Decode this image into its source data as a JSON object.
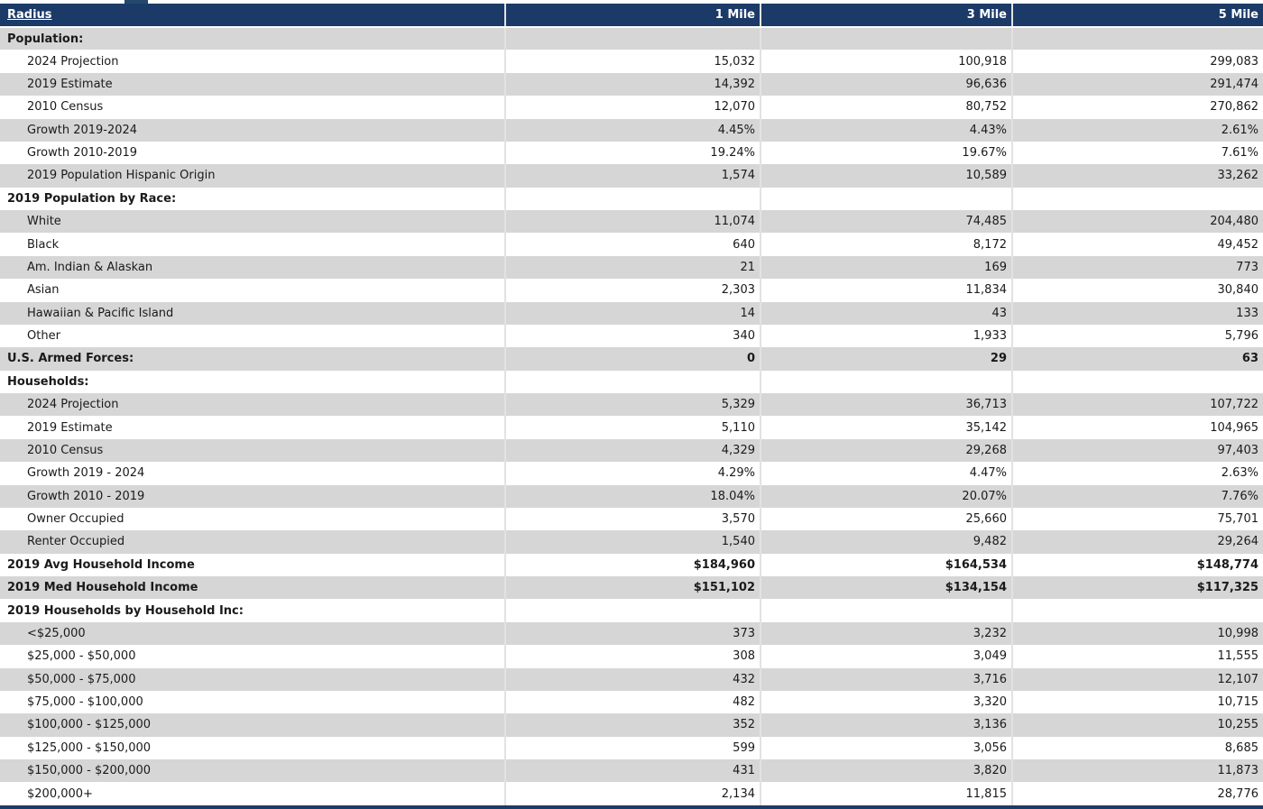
{
  "colors": {
    "header_bg": "#1c3a67",
    "header_text": "#ffffff",
    "row_gray": "#d6d6d6",
    "row_white": "#ffffff",
    "text": "#1a1a1a",
    "sep": "#e2e2e2",
    "tab": "#24476e"
  },
  "table": {
    "columns": [
      {
        "label": "Radius",
        "align": "left"
      },
      {
        "label": "1 Mile",
        "align": "right"
      },
      {
        "label": "3 Mile",
        "align": "right"
      },
      {
        "label": "5 Mile",
        "align": "right"
      }
    ],
    "rows": [
      {
        "label": "Population:",
        "type": "section",
        "values": [
          "",
          "",
          ""
        ]
      },
      {
        "label": "2024 Projection",
        "type": "data",
        "values": [
          "15,032",
          "100,918",
          "299,083"
        ]
      },
      {
        "label": "2019 Estimate",
        "type": "data",
        "values": [
          "14,392",
          "96,636",
          "291,474"
        ]
      },
      {
        "label": "2010 Census",
        "type": "data",
        "values": [
          "12,070",
          "80,752",
          "270,862"
        ]
      },
      {
        "label": "Growth 2019-2024",
        "type": "data",
        "values": [
          "4.45%",
          "4.43%",
          "2.61%"
        ]
      },
      {
        "label": "Growth 2010-2019",
        "type": "data",
        "values": [
          "19.24%",
          "19.67%",
          "7.61%"
        ]
      },
      {
        "label": "2019 Population Hispanic Origin",
        "type": "data",
        "values": [
          "1,574",
          "10,589",
          "33,262"
        ]
      },
      {
        "label": "2019 Population by Race:",
        "type": "section",
        "values": [
          "",
          "",
          ""
        ]
      },
      {
        "label": "White",
        "type": "data",
        "values": [
          "11,074",
          "74,485",
          "204,480"
        ]
      },
      {
        "label": "Black",
        "type": "data",
        "values": [
          "640",
          "8,172",
          "49,452"
        ]
      },
      {
        "label": "Am. Indian & Alaskan",
        "type": "data",
        "values": [
          "21",
          "169",
          "773"
        ]
      },
      {
        "label": "Asian",
        "type": "data",
        "values": [
          "2,303",
          "11,834",
          "30,840"
        ]
      },
      {
        "label": "Hawaiian & Pacific Island",
        "type": "data",
        "values": [
          "14",
          "43",
          "133"
        ]
      },
      {
        "label": "Other",
        "type": "data",
        "values": [
          "340",
          "1,933",
          "5,796"
        ]
      },
      {
        "label": "U.S. Armed Forces:",
        "type": "bold-data",
        "values": [
          "0",
          "29",
          "63"
        ]
      },
      {
        "label": "Households:",
        "type": "section",
        "values": [
          "",
          "",
          ""
        ]
      },
      {
        "label": "2024 Projection",
        "type": "data",
        "values": [
          "5,329",
          "36,713",
          "107,722"
        ]
      },
      {
        "label": "2019 Estimate",
        "type": "data",
        "values": [
          "5,110",
          "35,142",
          "104,965"
        ]
      },
      {
        "label": "2010 Census",
        "type": "data",
        "values": [
          "4,329",
          "29,268",
          "97,403"
        ]
      },
      {
        "label": "Growth 2019 - 2024",
        "type": "data",
        "values": [
          "4.29%",
          "4.47%",
          "2.63%"
        ]
      },
      {
        "label": "Growth 2010 - 2019",
        "type": "data",
        "values": [
          "18.04%",
          "20.07%",
          "7.76%"
        ]
      },
      {
        "label": "Owner Occupied",
        "type": "data",
        "values": [
          "3,570",
          "25,660",
          "75,701"
        ]
      },
      {
        "label": "Renter Occupied",
        "type": "data",
        "values": [
          "1,540",
          "9,482",
          "29,264"
        ]
      },
      {
        "label": "2019 Avg Household Income",
        "type": "bold-data",
        "values": [
          "$184,960",
          "$164,534",
          "$148,774"
        ]
      },
      {
        "label": "2019 Med Household Income",
        "type": "bold-data",
        "values": [
          "$151,102",
          "$134,154",
          "$117,325"
        ]
      },
      {
        "label": "2019 Households by Household Inc:",
        "type": "section",
        "values": [
          "",
          "",
          ""
        ]
      },
      {
        "label": "<$25,000",
        "type": "data",
        "values": [
          "373",
          "3,232",
          "10,998"
        ]
      },
      {
        "label": "$25,000 - $50,000",
        "type": "data",
        "values": [
          "308",
          "3,049",
          "11,555"
        ]
      },
      {
        "label": "$50,000 - $75,000",
        "type": "data",
        "values": [
          "432",
          "3,716",
          "12,107"
        ]
      },
      {
        "label": "$75,000 - $100,000",
        "type": "data",
        "values": [
          "482",
          "3,320",
          "10,715"
        ]
      },
      {
        "label": "$100,000 - $125,000",
        "type": "data",
        "values": [
          "352",
          "3,136",
          "10,255"
        ]
      },
      {
        "label": "$125,000 - $150,000",
        "type": "data",
        "values": [
          "599",
          "3,056",
          "8,685"
        ]
      },
      {
        "label": "$150,000 - $200,000",
        "type": "data",
        "values": [
          "431",
          "3,820",
          "11,873"
        ]
      },
      {
        "label": "$200,000+",
        "type": "data",
        "values": [
          "2,134",
          "11,815",
          "28,776"
        ]
      }
    ]
  }
}
